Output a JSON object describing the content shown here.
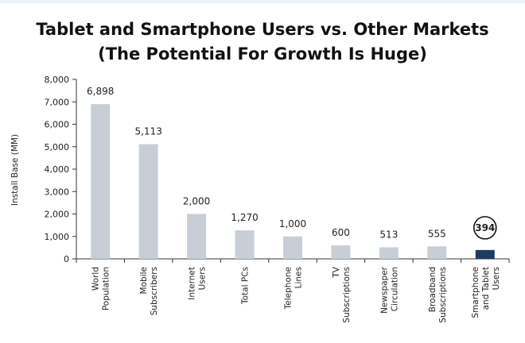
{
  "chart_data": {
    "type": "bar",
    "title": [
      "Tablet and Smartphone Users vs. Other Markets",
      "(The Potential For Growth Is Huge)"
    ],
    "ylabel": "Install Base (MM)",
    "xlabel": "",
    "ylim": [
      0,
      8000
    ],
    "yticks": [
      "0",
      "1,000",
      "2,000",
      "3,000",
      "4,000",
      "5,000",
      "6,000",
      "7,000",
      "8,000"
    ],
    "grid": false,
    "legend": "none",
    "categories": [
      [
        "World",
        "Population"
      ],
      [
        "Mobile",
        "Subscribers"
      ],
      [
        "Internet",
        "Users"
      ],
      [
        "Total PCs"
      ],
      [
        "Telephone",
        "Lines"
      ],
      [
        "TV",
        "Subscriptions"
      ],
      [
        "Newspaper",
        "Circulation"
      ],
      [
        "Broadband",
        "Subscriptions"
      ],
      [
        "Smartphone",
        "and Tablet",
        "Users"
      ]
    ],
    "values": [
      6898,
      5113,
      2000,
      1270,
      1000,
      600,
      513,
      555,
      394
    ],
    "value_labels": [
      "6,898",
      "5,113",
      "2,000",
      "1,270",
      "1,000",
      "600",
      "513",
      "555",
      "394"
    ],
    "highlight_index": 8,
    "colors": {
      "bar": "#c9ced6",
      "highlight": "#1f3b63",
      "axis": "#333333",
      "text": "#222222"
    }
  }
}
